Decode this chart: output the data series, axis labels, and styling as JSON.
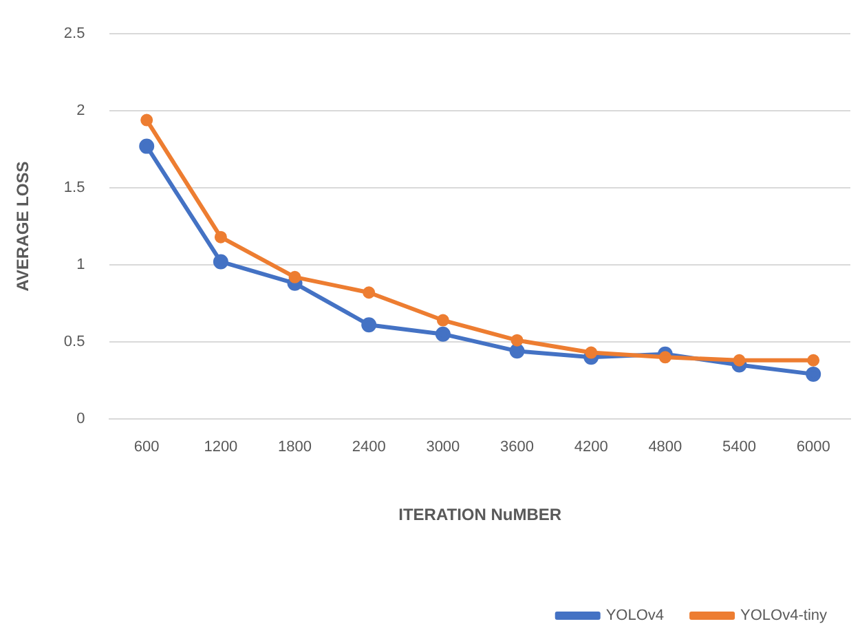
{
  "chart_data": {
    "type": "line",
    "xlabel": "ITERATION NuMBER",
    "ylabel": "AVERAGE LOSS",
    "categories": [
      "600",
      "1200",
      "1800",
      "2400",
      "3000",
      "3600",
      "4200",
      "4800",
      "5400",
      "6000"
    ],
    "series": [
      {
        "name": "YOLOv4",
        "color": "#4472c4",
        "values": [
          1.77,
          1.02,
          0.88,
          0.61,
          0.55,
          0.44,
          0.4,
          0.42,
          0.35,
          0.29
        ]
      },
      {
        "name": "YOLOv4-tiny",
        "color": "#ed7d31",
        "values": [
          1.94,
          1.18,
          0.92,
          0.82,
          0.64,
          0.51,
          0.43,
          0.4,
          0.38,
          0.38
        ]
      }
    ],
    "ylim": [
      0,
      2.5
    ],
    "yticks": [
      0,
      0.5,
      1,
      1.5,
      2,
      2.5
    ],
    "grid": "y",
    "legend": "bottom right",
    "marker": "circle",
    "line_style": "solid"
  }
}
